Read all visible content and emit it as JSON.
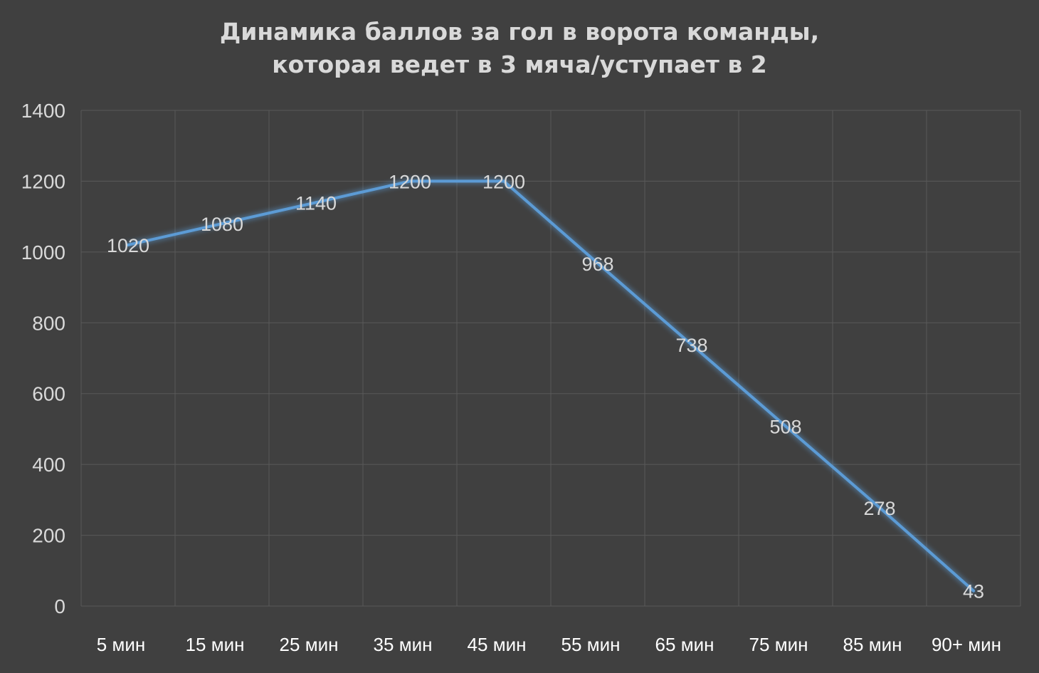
{
  "chart_data": {
    "type": "line",
    "title_lines": [
      "Динамика баллов за гол в ворота команды,",
      "которая ведет в 3 мяча/уступает в 2"
    ],
    "categories": [
      "5 мин",
      "15 мин",
      "25 мин",
      "35 мин",
      "45 мин",
      "55 мин",
      "65 мин",
      "75 мин",
      "85 мин",
      "90+ мин"
    ],
    "series": [
      {
        "values": [
          1020,
          1080,
          1140,
          1200,
          1200,
          968,
          738,
          508,
          278,
          43
        ]
      }
    ],
    "data_labels": [
      "1020",
      "1080",
      "1140",
      "1200",
      "1200",
      "968",
      "738",
      "508",
      "278",
      "43"
    ],
    "ylim": [
      0,
      1400
    ],
    "yticks": [
      0,
      200,
      400,
      600,
      800,
      1000,
      1200,
      1400
    ],
    "grid": true,
    "legend": "none",
    "colors": {
      "background": "#404040",
      "line": "#5b9bd5",
      "grid": "#595959",
      "text": "#d9d9d9"
    }
  }
}
